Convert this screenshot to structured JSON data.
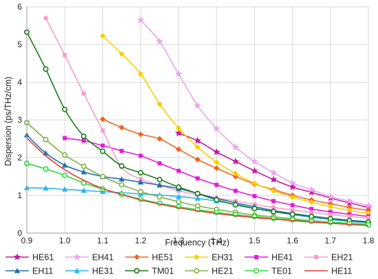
{
  "chart_data": {
    "type": "line",
    "title": "",
    "xlabel": "Frequency (THz)",
    "ylabel": "Dispersion (ps/THz/cm)",
    "xlim": [
      0.9,
      1.8
    ],
    "ylim": [
      0,
      6
    ],
    "xticks": [
      "0.9",
      "1.0",
      "1.1",
      "1.2",
      "1.3",
      "1.4",
      "1.5",
      "1.6",
      "1.7",
      "1.8"
    ],
    "yticks": [
      "0",
      "1",
      "2",
      "3",
      "4",
      "5",
      "6"
    ],
    "grid": true,
    "legend_position": "bottom",
    "series": [
      {
        "name": "HE61",
        "color": "#c61a9d",
        "marker": "star",
        "x": [
          1.3,
          1.35,
          1.4,
          1.45,
          1.5,
          1.55,
          1.6,
          1.65,
          1.7,
          1.75,
          1.8
        ],
        "y": [
          2.65,
          2.45,
          2.15,
          1.9,
          1.65,
          1.42,
          1.22,
          1.08,
          0.93,
          0.8,
          0.68
        ]
      },
      {
        "name": "EH41",
        "color": "#e8a6ee",
        "marker": "star",
        "x": [
          1.2,
          1.25,
          1.3,
          1.35,
          1.4,
          1.45,
          1.5,
          1.55,
          1.6,
          1.65,
          1.7,
          1.75,
          1.8
        ],
        "y": [
          5.65,
          5.08,
          4.22,
          3.38,
          2.77,
          2.28,
          1.9,
          1.6,
          1.33,
          1.15,
          0.97,
          0.85,
          0.73
        ]
      },
      {
        "name": "HE51",
        "color": "#f26522",
        "marker": "diamond",
        "x": [
          1.1,
          1.15,
          1.2,
          1.25,
          1.3,
          1.35,
          1.4,
          1.45,
          1.5,
          1.55,
          1.6,
          1.65,
          1.7,
          1.75,
          1.8
        ],
        "y": [
          3.02,
          2.8,
          2.62,
          2.5,
          2.22,
          1.95,
          1.72,
          1.5,
          1.3,
          1.15,
          1.0,
          0.88,
          0.78,
          0.68,
          0.6
        ]
      },
      {
        "name": "EH31",
        "color": "#f5d000",
        "marker": "diamond",
        "x": [
          1.1,
          1.15,
          1.2,
          1.25,
          1.3,
          1.35,
          1.4,
          1.45,
          1.5,
          1.55,
          1.6,
          1.65,
          1.7,
          1.75,
          1.8
        ],
        "y": [
          5.23,
          4.75,
          4.22,
          3.42,
          2.78,
          2.28,
          1.88,
          1.58,
          1.32,
          1.12,
          0.95,
          0.82,
          0.7,
          0.6,
          0.52
        ]
      },
      {
        "name": "HE41",
        "color": "#e81adb",
        "marker": "square",
        "x": [
          1.0,
          1.05,
          1.1,
          1.15,
          1.2,
          1.25,
          1.3,
          1.35,
          1.4,
          1.45,
          1.5,
          1.55,
          1.6,
          1.65,
          1.7,
          1.75,
          1.8
        ],
        "y": [
          2.52,
          2.45,
          2.32,
          2.18,
          2.05,
          1.85,
          1.65,
          1.45,
          1.28,
          1.12,
          0.98,
          0.85,
          0.74,
          0.64,
          0.56,
          0.5,
          0.44
        ]
      },
      {
        "name": "EH21",
        "color": "#f4a0c8",
        "marker": "square",
        "x": [
          0.95,
          1.0,
          1.05,
          1.1,
          1.15,
          1.2,
          1.25,
          1.3,
          1.35,
          1.4,
          1.45,
          1.5,
          1.55,
          1.6,
          1.65,
          1.7,
          1.75,
          1.8
        ],
        "y": [
          5.7,
          4.72,
          3.7,
          2.72,
          1.75,
          1.43,
          1.27,
          1.12,
          1.02,
          0.93,
          0.85,
          0.76,
          0.68,
          0.61,
          0.55,
          0.49,
          0.44,
          0.4
        ]
      },
      {
        "name": "EH11",
        "color": "#1f6fb2",
        "marker": "triangle",
        "x": [
          0.9,
          0.95,
          1.0,
          1.05,
          1.1,
          1.15,
          1.2,
          1.25,
          1.3,
          1.35,
          1.4,
          1.45,
          1.5,
          1.55,
          1.6,
          1.65,
          1.7,
          1.75,
          1.8
        ],
        "y": [
          2.6,
          2.12,
          1.8,
          1.62,
          1.5,
          1.43,
          1.35,
          1.27,
          1.18,
          1.05,
          0.92,
          0.8,
          0.7,
          0.6,
          0.52,
          0.45,
          0.39,
          0.34,
          0.3
        ]
      },
      {
        "name": "HE31",
        "color": "#29b6f6",
        "marker": "triangle",
        "x": [
          0.9,
          0.95,
          1.0,
          1.05,
          1.1,
          1.15,
          1.2,
          1.25,
          1.3,
          1.35,
          1.4,
          1.45,
          1.5,
          1.55,
          1.6,
          1.65,
          1.7,
          1.75,
          1.8
        ],
        "y": [
          1.2,
          1.19,
          1.16,
          1.13,
          1.1,
          1.07,
          1.04,
          1.01,
          0.97,
          0.92,
          0.85,
          0.76,
          0.66,
          0.57,
          0.49,
          0.42,
          0.36,
          0.31,
          0.27
        ]
      },
      {
        "name": "TM01",
        "color": "#1a7a1a",
        "marker": "circle",
        "x": [
          0.9,
          0.95,
          1.0,
          1.05,
          1.1,
          1.15,
          1.2,
          1.25,
          1.3,
          1.35,
          1.4,
          1.45,
          1.5,
          1.55,
          1.6,
          1.65,
          1.7,
          1.75,
          1.8
        ],
        "y": [
          5.33,
          4.35,
          3.28,
          2.57,
          2.17,
          1.78,
          1.6,
          1.42,
          1.22,
          1.05,
          0.88,
          0.75,
          0.65,
          0.57,
          0.5,
          0.44,
          0.38,
          0.33,
          0.29
        ]
      },
      {
        "name": "HE21",
        "color": "#7cb342",
        "marker": "circle",
        "x": [
          0.9,
          0.95,
          1.0,
          1.05,
          1.1,
          1.15,
          1.2,
          1.25,
          1.3,
          1.35,
          1.4,
          1.45,
          1.5,
          1.55,
          1.6,
          1.65,
          1.7,
          1.75,
          1.8
        ],
        "y": [
          2.93,
          2.48,
          2.07,
          1.77,
          1.5,
          1.28,
          1.1,
          0.96,
          0.83,
          0.72,
          0.63,
          0.55,
          0.48,
          0.43,
          0.38,
          0.33,
          0.29,
          0.26,
          0.23
        ]
      },
      {
        "name": "TE01",
        "color": "#22e03a",
        "marker": "circle",
        "x": [
          0.9,
          0.95,
          1.0,
          1.05,
          1.1,
          1.15,
          1.2,
          1.25,
          1.3,
          1.35,
          1.4,
          1.45,
          1.5,
          1.55,
          1.6,
          1.65,
          1.7,
          1.75,
          1.8
        ],
        "y": [
          1.85,
          1.7,
          1.53,
          1.33,
          1.17,
          1.03,
          0.9,
          0.79,
          0.7,
          0.62,
          0.55,
          0.49,
          0.44,
          0.39,
          0.35,
          0.31,
          0.28,
          0.25,
          0.22
        ]
      },
      {
        "name": "HE11",
        "color": "#e53935",
        "marker": "none",
        "x": [
          0.9,
          0.95,
          1.0,
          1.05,
          1.1,
          1.15,
          1.2,
          1.25,
          1.3,
          1.35,
          1.4,
          1.45,
          1.5,
          1.55,
          1.6,
          1.65,
          1.7,
          1.75,
          1.8
        ],
        "y": [
          2.52,
          2.05,
          1.68,
          1.4,
          1.18,
          1.02,
          0.88,
          0.77,
          0.67,
          0.59,
          0.52,
          0.46,
          0.41,
          0.37,
          0.33,
          0.29,
          0.26,
          0.23,
          0.2
        ]
      }
    ]
  }
}
